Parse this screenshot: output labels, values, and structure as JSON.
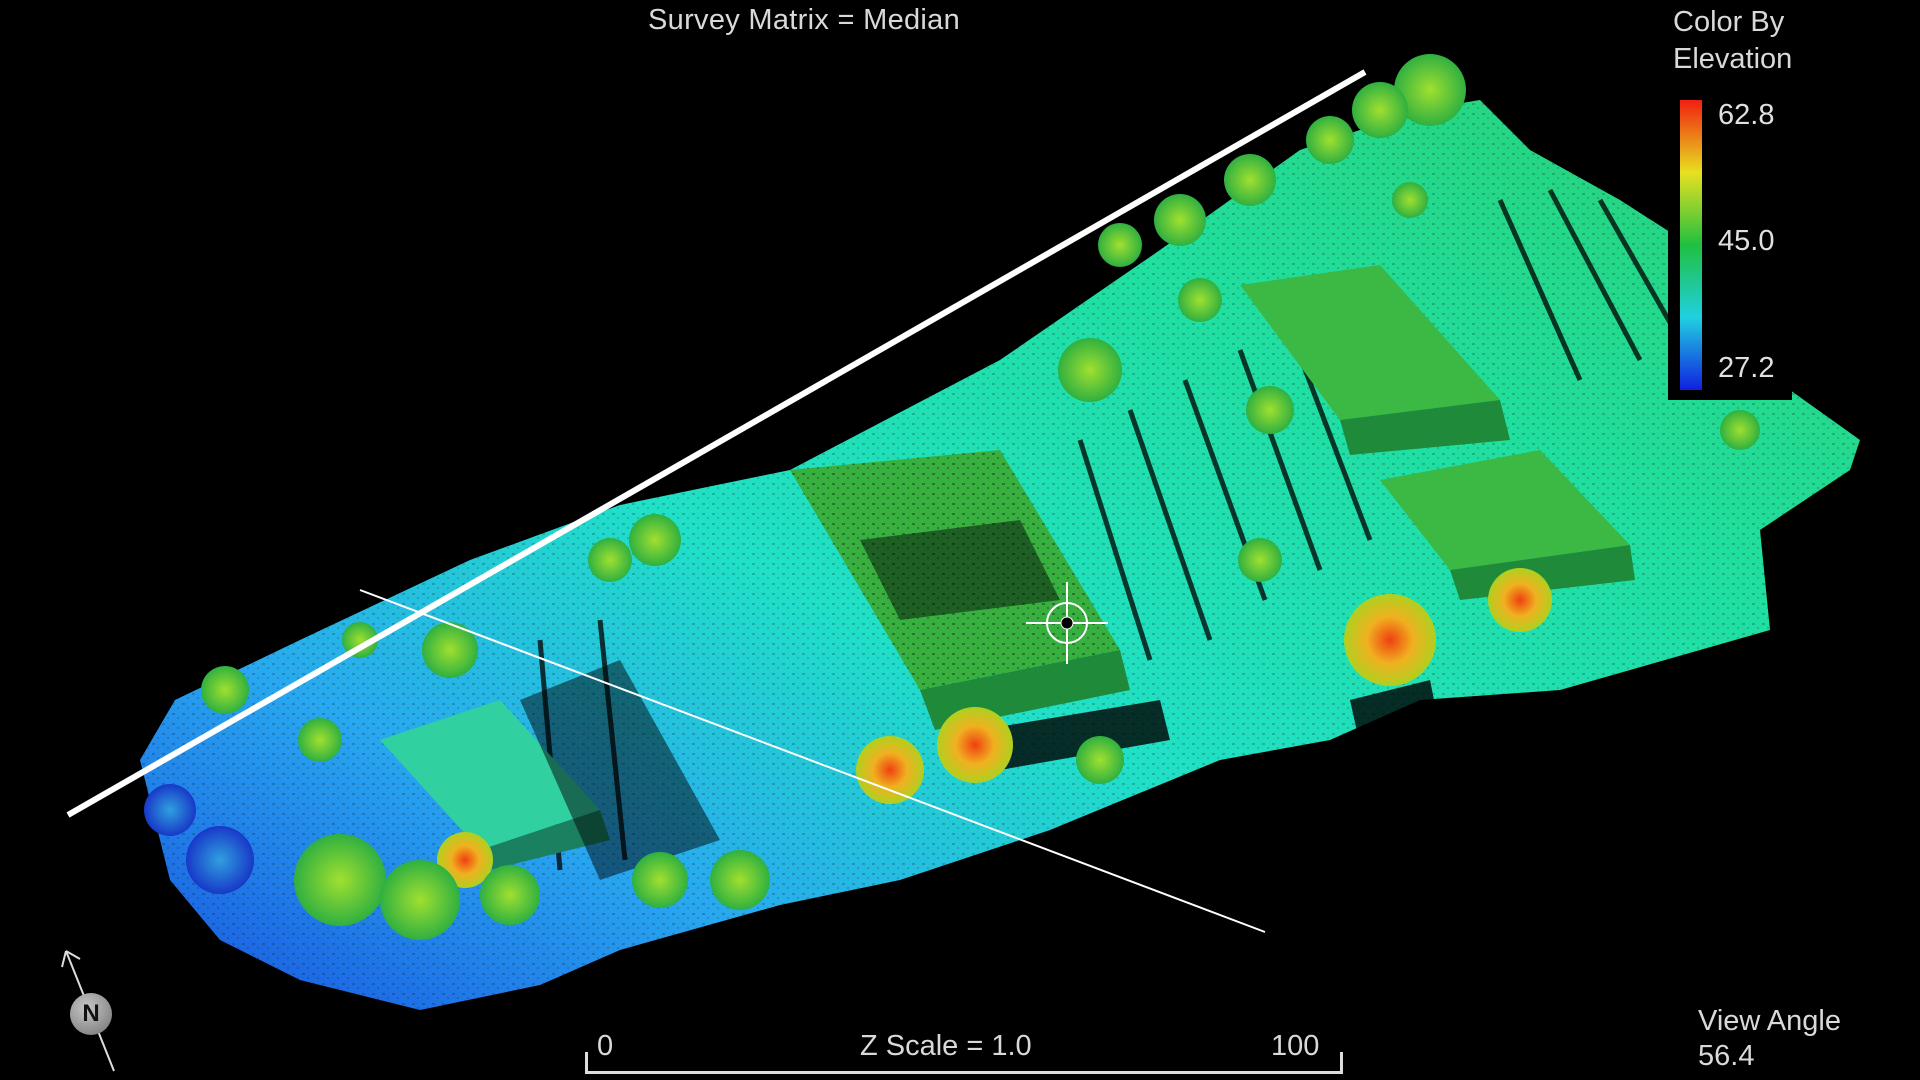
{
  "view": {
    "title": "Survey Matrix = Median",
    "legend_title_line1": "Color By",
    "legend_title_line2": "Elevation",
    "legend_max": "62.8",
    "legend_mid": "45.0",
    "legend_min": "27.2",
    "view_angle_label": "View Angle",
    "view_angle_value": "56.4",
    "scale_left": "0",
    "scale_center": "Z Scale = 1.0",
    "scale_right": "100",
    "north_label": "N"
  },
  "colors": {
    "background": "#000000",
    "low": "#1030d0",
    "mid_low": "#20d0e0",
    "mid": "#20c060",
    "mid_high": "#e8e020",
    "high": "#f02010"
  },
  "icons": {
    "north_arrow": "north-arrow-icon",
    "crosshair": "crosshair-icon"
  }
}
